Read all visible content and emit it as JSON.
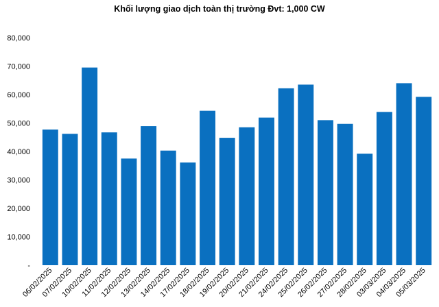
{
  "chart_data": {
    "type": "bar",
    "title": "Khối lượng giao dịch toàn thị trường Đvt: 1,000 CW",
    "xlabel": "",
    "ylabel": "",
    "ylim": [
      0,
      80000
    ],
    "yticks": [
      0,
      10000,
      20000,
      30000,
      40000,
      50000,
      60000,
      70000,
      80000
    ],
    "ytick_labels": [
      "-",
      "10,000",
      "20,000",
      "30,000",
      "40,000",
      "50,000",
      "60,000",
      "70,000",
      "80,000"
    ],
    "grid": false,
    "legend": "none",
    "bar_color": "#0a70c0",
    "categories": [
      "06/02/2025",
      "07/02/2025",
      "10/02/2025",
      "11/02/2025",
      "12/02/2025",
      "13/02/2025",
      "14/02/2025",
      "17/02/2025",
      "18/02/2025",
      "19/02/2025",
      "20/02/2025",
      "21/02/2025",
      "24/02/2025",
      "25/02/2025",
      "26/02/2025",
      "27/02/2025",
      "28/02/2025",
      "03/03/2025",
      "04/03/2025",
      "05/03/2025"
    ],
    "values": [
      47700,
      46200,
      69500,
      46700,
      37500,
      48900,
      40300,
      36100,
      54300,
      44800,
      48500,
      51900,
      62200,
      63500,
      51000,
      49700,
      39200,
      53900,
      64000,
      59200
    ]
  }
}
